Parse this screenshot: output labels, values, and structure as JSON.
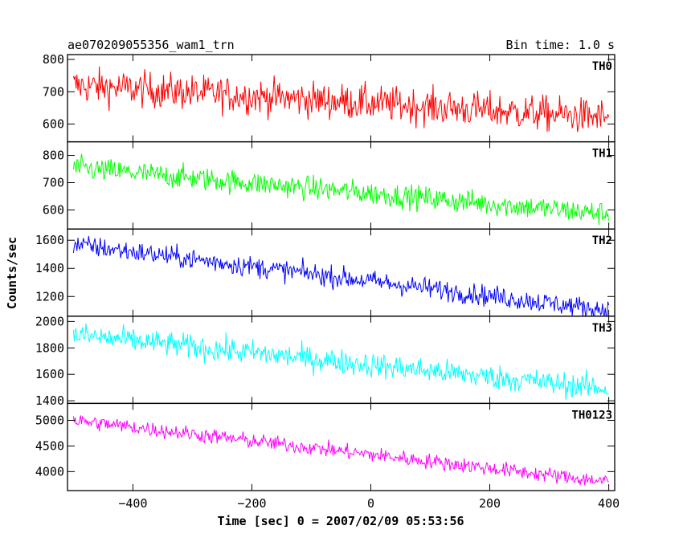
{
  "header": {
    "title": "ae070209055356_wam1_trn",
    "bin_time": "Bin time: 1.0 s"
  },
  "chart_data": {
    "type": "line",
    "xlabel": "Time [sec] 0 = 2007/02/09 05:53:56",
    "ylabel": "Counts/sec",
    "xlim": [
      -510,
      410
    ],
    "x_ticks": [
      -400,
      -200,
      0,
      200,
      400
    ],
    "x_range": [
      -500,
      400
    ],
    "bin_time_s": 1.0,
    "panels": [
      {
        "name": "TH0",
        "color": "#ff0000",
        "ylim": [
          545,
          815
        ],
        "y_ticks": [
          600,
          700,
          800
        ],
        "start_value": 720,
        "end_value": 620,
        "noise": 28
      },
      {
        "name": "TH1",
        "color": "#00ff00",
        "ylim": [
          530,
          850
        ],
        "y_ticks": [
          600,
          700,
          800
        ],
        "start_value": 755,
        "end_value": 585,
        "noise": 22
      },
      {
        "name": "TH2",
        "color": "#0000ff",
        "ylim": [
          1060,
          1680
        ],
        "y_ticks": [
          1200,
          1400,
          1600
        ],
        "start_value": 1570,
        "end_value": 1100,
        "noise": 38
      },
      {
        "name": "TH3",
        "color": "#00ffff",
        "ylim": [
          1380,
          2040
        ],
        "y_ticks": [
          1400,
          1600,
          1800,
          2000
        ],
        "start_value": 1900,
        "end_value": 1490,
        "noise": 48
      },
      {
        "name": "TH0123",
        "color": "#ff00ff",
        "ylim": [
          3630,
          5330
        ],
        "y_ticks": [
          4000,
          4500,
          5000
        ],
        "start_value": 5000,
        "end_value": 3800,
        "noise": 75
      }
    ]
  }
}
